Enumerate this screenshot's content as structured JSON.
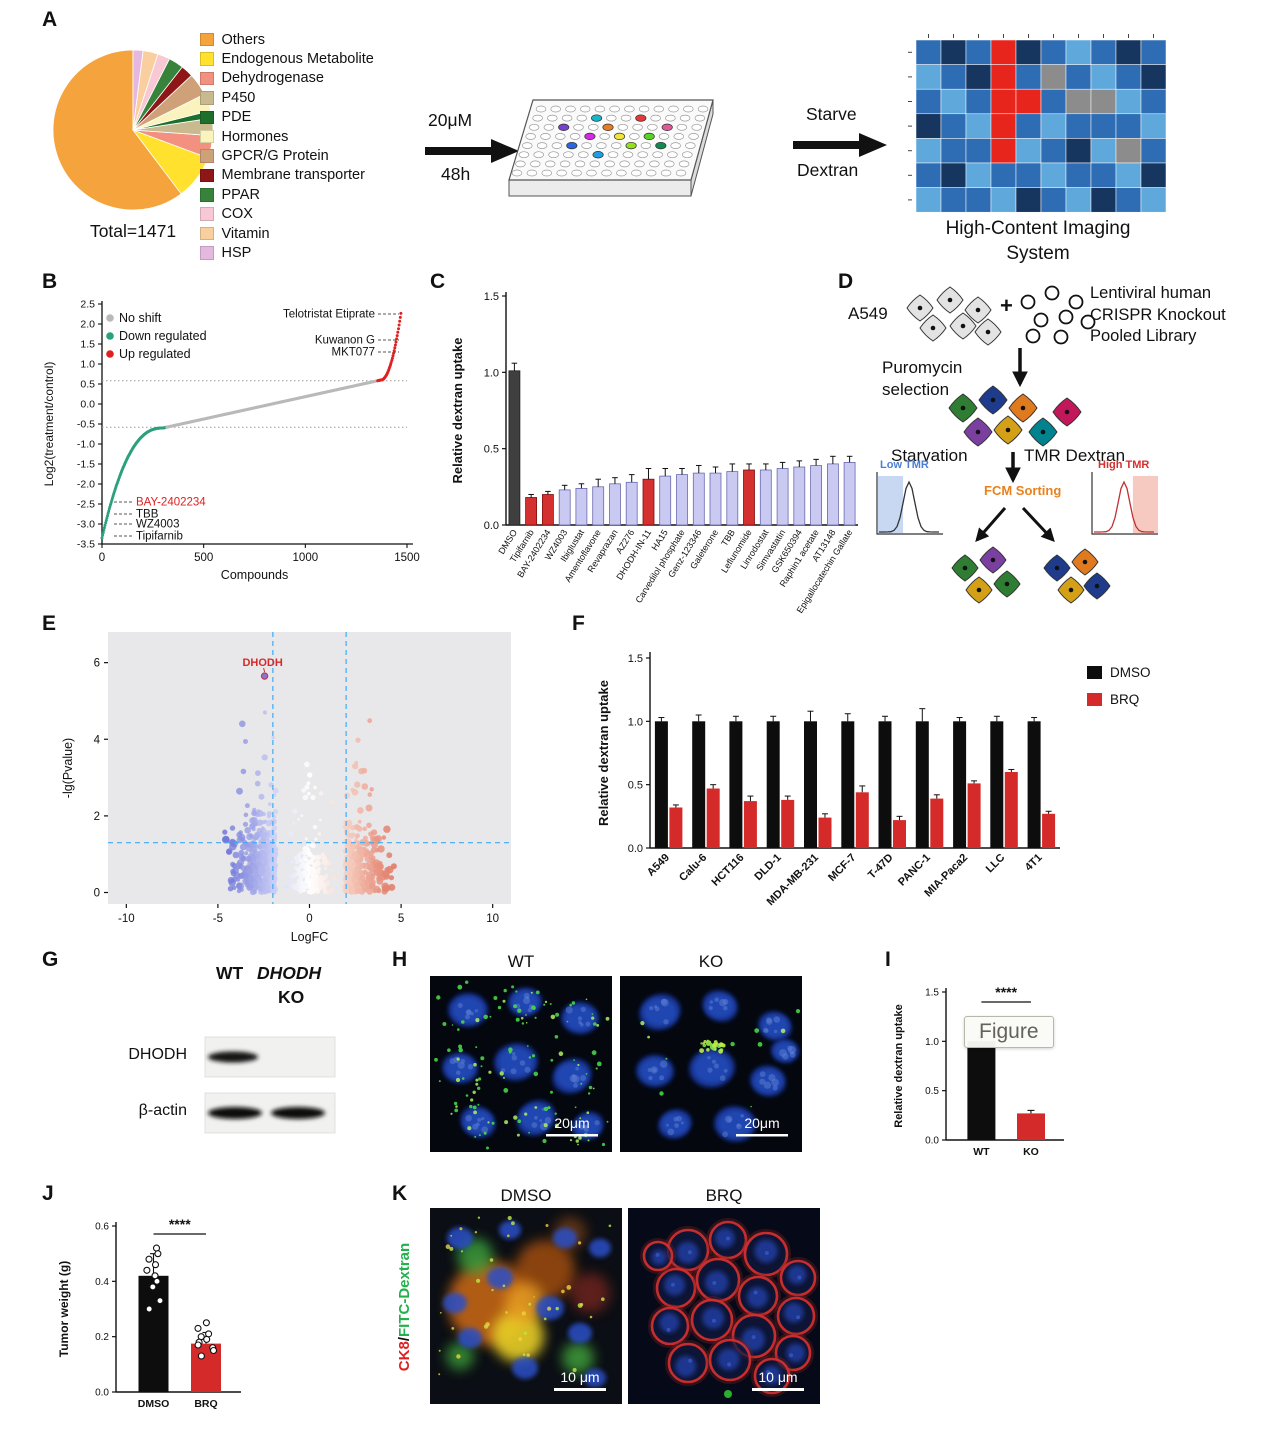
{
  "chart_data": [
    {
      "id": "pieA",
      "type": "pie",
      "total_label": "Total=1471",
      "slices": [
        {
          "label": "Others",
          "value": 60,
          "color": "#F5A33C"
        },
        {
          "label": "Endogenous Metabolite",
          "value": 9,
          "color": "#FFE12E"
        },
        {
          "label": "Dehydrogenase",
          "value": 4.5,
          "color": "#F2917F"
        },
        {
          "label": "P450",
          "value": 3.5,
          "color": "#C8B98E"
        },
        {
          "label": "PDE",
          "value": 1.5,
          "color": "#1D6F2B"
        },
        {
          "label": "Hormones",
          "value": 3.5,
          "color": "#FBF3BE"
        },
        {
          "label": "GPCR/G Protein",
          "value": 4.5,
          "color": "#CFA179"
        },
        {
          "label": "Membrane transporter",
          "value": 2.5,
          "color": "#8E1616"
        },
        {
          "label": "PPAR",
          "value": 3,
          "color": "#37833B"
        },
        {
          "label": "COX",
          "value": 2.5,
          "color": "#F8C8D4"
        },
        {
          "label": "Vitamin",
          "value": 3,
          "color": "#F9CF9F"
        },
        {
          "label": "HSP",
          "value": 2,
          "color": "#E5B8E0"
        }
      ]
    },
    {
      "id": "waterfallB",
      "type": "scatter",
      "xlabel": "Compounds",
      "ylabel": "Log2(treatment/control)",
      "xlim": [
        0,
        1500
      ],
      "ylim": [
        -3.5,
        2.5
      ],
      "xticks": [
        0,
        500,
        1000,
        1500
      ],
      "yticks": [
        2.5,
        2.0,
        1.5,
        1.0,
        0.5,
        0.0,
        -0.5,
        -1.0,
        -1.5,
        -2.0,
        -2.5,
        -3.0,
        -3.5
      ],
      "n_compounds": 1471,
      "thresholds": [
        0.58,
        -0.58
      ],
      "legend": [
        {
          "label": "No shift",
          "color": "#B9B9B9"
        },
        {
          "label": "Down regulated",
          "color": "#2BA07E"
        },
        {
          "label": "Up regulated",
          "color": "#E02020"
        }
      ],
      "up_annotations": [
        {
          "label": "Telotristat Etiprate",
          "y": 2.25
        },
        {
          "label": "Kuwanon G",
          "y": 1.6
        },
        {
          "label": "MKT077",
          "y": 1.3
        }
      ],
      "down_annotations": [
        {
          "label": "BAY-2402234",
          "y": -2.45,
          "color": "#E02020"
        },
        {
          "label": "TBB",
          "y": -2.75,
          "color": "#111111"
        },
        {
          "label": "WZ4003",
          "y": -3.0,
          "color": "#111111"
        },
        {
          "label": "Tipifarnib",
          "y": -3.3,
          "color": "#111111"
        }
      ]
    },
    {
      "id": "barsC",
      "type": "bar",
      "ylabel": "Relative dextran uptake",
      "ylim": [
        0,
        1.5
      ],
      "yticks": [
        0.0,
        0.5,
        1.0,
        1.5
      ],
      "categories": [
        "DMSO",
        "Tipifarnib",
        "BAY-2402234",
        "WZ4003",
        "Ibiglustat",
        "Amentoflavone",
        "Revaprazan",
        "AZ276",
        "DHODH-IN-11",
        "HA15",
        "Carvedilol phosphate",
        "Genz-123346",
        "Galeterone",
        "TBB",
        "Leflunomide",
        "Linrodostat",
        "Simvastatin",
        "GSK650394",
        "Raphin1 acetate",
        "AT13148",
        "Epigallocatechin Gallate"
      ],
      "values": [
        1.01,
        0.18,
        0.2,
        0.23,
        0.24,
        0.25,
        0.27,
        0.28,
        0.3,
        0.32,
        0.33,
        0.34,
        0.34,
        0.35,
        0.36,
        0.36,
        0.37,
        0.38,
        0.39,
        0.4,
        0.41
      ],
      "errors": [
        0.05,
        0.02,
        0.02,
        0.03,
        0.03,
        0.05,
        0.04,
        0.05,
        0.07,
        0.05,
        0.04,
        0.05,
        0.04,
        0.05,
        0.04,
        0.04,
        0.04,
        0.04,
        0.04,
        0.05,
        0.04
      ],
      "bar_colors": {
        "default": "#C9C9F2",
        "control": "#3F3F3F",
        "highlight": "#D43030"
      },
      "highlight_indices": [
        1,
        2,
        8,
        14
      ],
      "control_index": 0
    },
    {
      "id": "volcanoE",
      "type": "scatter",
      "xlabel": "LogFC",
      "ylabel": "-lg(Pvalue)",
      "xlim": [
        -11,
        11
      ],
      "ylim": [
        -0.3,
        6.8
      ],
      "xticks": [
        -10,
        -5,
        0,
        5,
        10
      ],
      "yticks": [
        0,
        2,
        4,
        6
      ],
      "vlines": [
        -2,
        2
      ],
      "hline": 1.3,
      "gene_label": "DHODH",
      "gene_point": {
        "x": -2.45,
        "y": 5.65
      }
    },
    {
      "id": "groupbarF",
      "type": "bar",
      "ylabel": "Relative dextran uptake",
      "ylim": [
        0,
        1.5
      ],
      "yticks": [
        0.0,
        0.5,
        1.0,
        1.5
      ],
      "categories": [
        "A549",
        "Calu-6",
        "HCT116",
        "DLD-1",
        "MDA-MB-231",
        "MCF-7",
        "T-47D",
        "PANC-1",
        "MIA-Paca2",
        "LLC",
        "4T1"
      ],
      "series": [
        {
          "name": "DMSO",
          "color": "#0D0D0D",
          "values": [
            1.0,
            1.0,
            1.0,
            1.0,
            1.0,
            1.0,
            1.0,
            1.0,
            1.0,
            1.0,
            1.0
          ],
          "errors": [
            0.03,
            0.05,
            0.04,
            0.04,
            0.08,
            0.06,
            0.04,
            0.1,
            0.03,
            0.04,
            0.03
          ]
        },
        {
          "name": "BRQ",
          "color": "#D42A2A",
          "values": [
            0.32,
            0.47,
            0.37,
            0.38,
            0.24,
            0.44,
            0.22,
            0.39,
            0.51,
            0.6,
            0.27
          ],
          "errors": [
            0.02,
            0.03,
            0.04,
            0.03,
            0.03,
            0.05,
            0.03,
            0.03,
            0.02,
            0.02,
            0.02
          ]
        }
      ],
      "legend_position": "top-right"
    },
    {
      "id": "barI",
      "type": "bar",
      "ylabel": "Relative dextran uptake",
      "ylim": [
        0,
        1.5
      ],
      "yticks": [
        0.0,
        0.5,
        1.0,
        1.5
      ],
      "categories": [
        "WT",
        "KO"
      ],
      "values": [
        1.0,
        0.27
      ],
      "errors": [
        0.04,
        0.03
      ],
      "colors": [
        "#0D0D0D",
        "#D42A2A"
      ],
      "significance": "****"
    },
    {
      "id": "barJ",
      "type": "bar",
      "ylabel": "Tumor weight (g)",
      "ylim": [
        0,
        0.6
      ],
      "yticks": [
        0.0,
        0.2,
        0.4,
        0.6
      ],
      "categories": [
        "DMSO",
        "BRQ"
      ],
      "values": [
        0.42,
        0.175
      ],
      "errors": [
        0.08,
        0.04
      ],
      "colors": [
        "#0D0D0D",
        "#D42A2A"
      ],
      "significance": "****",
      "points": [
        [
          0.52,
          0.5,
          0.48,
          0.46,
          0.44,
          0.42,
          0.4,
          0.38,
          0.33,
          0.3
        ],
        [
          0.25,
          0.23,
          0.21,
          0.2,
          0.19,
          0.18,
          0.17,
          0.16,
          0.15,
          0.13
        ]
      ]
    }
  ],
  "panelA": {
    "label": "A",
    "dose": "20μM",
    "duration": "48h",
    "arrow2_top": "Starve",
    "arrow2_bottom": "Dextran",
    "caption_line1": "High-Content Imaging",
    "caption_line2": "System",
    "heatmap": {
      "palette": {
        "b1": "#16355F",
        "b2": "#2E6DB4",
        "b3": "#5FA8DC",
        "r": "#E8251C",
        "g": "#8C8C8C"
      },
      "rows": [
        [
          "b2",
          "b1",
          "b2",
          "r",
          "b1",
          "b2",
          "b3",
          "b2",
          "b1",
          "b2"
        ],
        [
          "b3",
          "b2",
          "b1",
          "r",
          "b2",
          "g",
          "b2",
          "b3",
          "b2",
          "b1"
        ],
        [
          "b2",
          "b3",
          "b2",
          "r",
          "r",
          "b2",
          "g",
          "g",
          "b3",
          "b2"
        ],
        [
          "b1",
          "b2",
          "b3",
          "r",
          "b2",
          "b3",
          "b2",
          "b2",
          "b2",
          "b3"
        ],
        [
          "b3",
          "b2",
          "b2",
          "r",
          "b3",
          "b2",
          "b1",
          "b3",
          "g",
          "b2"
        ],
        [
          "b2",
          "b1",
          "b3",
          "b2",
          "b2",
          "b3",
          "b2",
          "b2",
          "b3",
          "b1"
        ],
        [
          "b3",
          "b2",
          "b2",
          "b3",
          "b1",
          "b2",
          "b3",
          "b1",
          "b2",
          "b3"
        ]
      ]
    },
    "plate_wells": [
      [
        1,
        4,
        "#19B5C9"
      ],
      [
        1,
        7,
        "#E03A3A"
      ],
      [
        2,
        2,
        "#7A3FD1"
      ],
      [
        2,
        5,
        "#E87C1E"
      ],
      [
        2,
        9,
        "#E0579A"
      ],
      [
        3,
        4,
        "#D42AE0"
      ],
      [
        3,
        6,
        "#EFE43A"
      ],
      [
        3,
        8,
        "#57D41F"
      ],
      [
        4,
        3,
        "#2A66E0"
      ],
      [
        4,
        7,
        "#94E01F"
      ],
      [
        4,
        9,
        "#118A4F"
      ],
      [
        5,
        5,
        "#1F9DE0"
      ]
    ]
  },
  "panelB": {
    "label": "B"
  },
  "panelC": {
    "label": "C"
  },
  "panelD": {
    "label": "D",
    "cell_line": "A549",
    "plus": "+",
    "library_line1": "Lentiviral human",
    "library_line2": "CRISPR Knockout",
    "library_line3": "Pooled Library",
    "selection_line1": "Puromycin",
    "selection_line2": "selection",
    "starvation": "Starvation",
    "tmr": "TMR Dextran",
    "low_tmr": "Low TMR",
    "high_tmr": "High TMR",
    "fcm": "FCM Sorting"
  },
  "panelE": {
    "label": "E"
  },
  "panelF": {
    "label": "F"
  },
  "panelG": {
    "label": "G",
    "col1": "WT",
    "col2": "DHODH",
    "col2b": "KO",
    "row1": "DHODH",
    "row2": "β-actin"
  },
  "panelH": {
    "label": "H",
    "left_title": "WT",
    "right_title": "KO",
    "scale": "20μm"
  },
  "panelI": {
    "label": "I"
  },
  "panelJ": {
    "label": "J"
  },
  "panelK": {
    "label": "K",
    "left_title": "DMSO",
    "right_title": "BRQ",
    "stain_red": "CK8",
    "stain_sep": "/",
    "stain_green": "FITC-Dextran",
    "scale": "10 μm"
  },
  "watermark": "Figure"
}
